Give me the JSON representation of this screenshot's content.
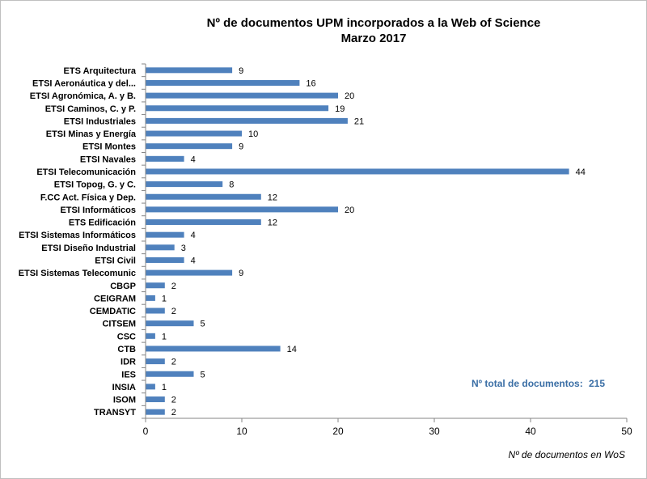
{
  "chart_data": {
    "type": "bar",
    "orientation": "horizontal",
    "title": "Nº de documentos UPM incorporados a la Web of Science",
    "subtitle": "Marzo 2017",
    "xlabel": "Nº de documentos en WoS",
    "ylabel": "",
    "xlim": [
      0,
      50
    ],
    "xticks": [
      0,
      10,
      20,
      30,
      40,
      50
    ],
    "grid": false,
    "bar_color": "#4f81bd",
    "categories": [
      "ETS Arquitectura",
      "ETSI Aeronáutica y del...",
      "ETSI Agronómica, A. y B.",
      "ETSI Caminos, C. y P.",
      "ETSI Industriales",
      "ETSI Minas y Energía",
      "ETSI Montes",
      "ETSI Navales",
      "ETSI Telecomunicación",
      "ETSI Topog, G. y C.",
      "F.CC Act. Física y Dep.",
      "ETSI Informáticos",
      "ETS Edificación",
      "ETSI Sistemas Informáticos",
      "ETSI Diseño Industrial",
      "ETSI Civil",
      "ETSI Sistemas Telecomunic",
      "CBGP",
      "CEIGRAM",
      "CEMDATIC",
      "CITSEM",
      "CSC",
      "CTB",
      "IDR",
      "IES",
      "INSIA",
      "ISOM",
      "TRANSYT"
    ],
    "values": [
      9,
      16,
      20,
      19,
      21,
      10,
      9,
      4,
      44,
      8,
      12,
      20,
      12,
      4,
      3,
      4,
      9,
      2,
      1,
      2,
      5,
      1,
      14,
      2,
      5,
      1,
      2,
      2
    ],
    "annotation": {
      "label": "Nº total de documentos:",
      "value": "215",
      "color": "#3a6ea5"
    }
  }
}
